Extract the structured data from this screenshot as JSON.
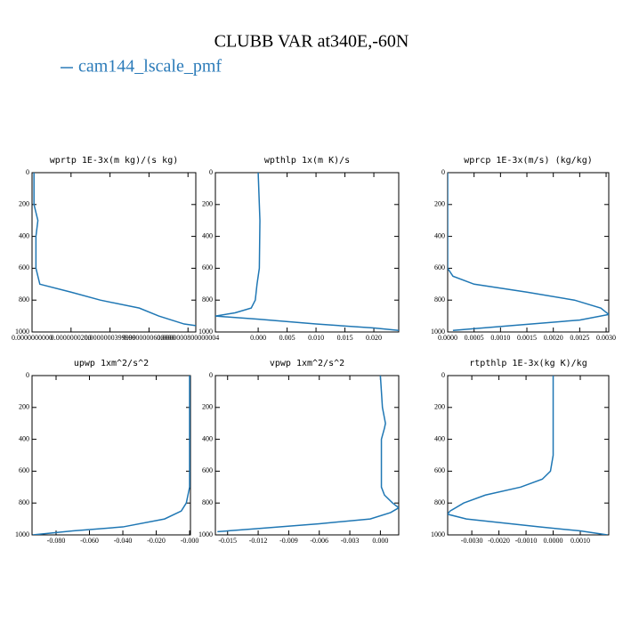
{
  "title": "CLUBB VAR at340E,-60N",
  "chart_data": [
    {
      "type": "line",
      "title": "wprtp  1E-3x(m kg)/(s kg)",
      "y": [
        0,
        100,
        200,
        300,
        400,
        500,
        600,
        700,
        750,
        800,
        850,
        900,
        950,
        960
      ],
      "series": [
        {
          "name": "cam144_lscale_pmf",
          "color": "#1f77b4",
          "values": [
            1e-09,
            1e-09,
            1e-09,
            3e-09,
            2e-09,
            2e-09,
            2e-09,
            4e-09,
            2e-08,
            3.5e-08,
            5.5e-08,
            6.5e-08,
            7.8e-08,
            8.4e-08
          ]
        }
      ],
      "xlim": [
        0,
        8.4e-08
      ],
      "xticks": [
        {
          "value": 0,
          "label": "0.0000000000"
        },
        {
          "value": 2e-08,
          "label": "0.0000000200"
        },
        {
          "value": 3.99999e-08,
          "label": "0.0000000399999"
        },
        {
          "value": 6e-08,
          "label": "0.0000000600000"
        },
        {
          "value": 8.00000004e-08,
          "label": "0.0000000800000004"
        }
      ],
      "ylim": [
        1000,
        0
      ],
      "yticks": [
        0,
        200,
        400,
        600,
        800,
        1000
      ]
    },
    {
      "type": "line",
      "title": "wpthlp  1x(m K)/s",
      "y": [
        0,
        300,
        600,
        700,
        800,
        850,
        880,
        900,
        920,
        950,
        975,
        990
      ],
      "series": [
        {
          "name": "cam144_lscale_pmf",
          "color": "#1f77b4",
          "values": [
            0,
            0.0003,
            0.0002,
            -0.0002,
            -0.0005,
            -0.0012,
            -0.004,
            -0.0074,
            0,
            0.01,
            0.02,
            0.0243
          ]
        }
      ],
      "xlim": [
        -0.0074,
        0.0243
      ],
      "xticks": [
        {
          "value": 0,
          "label": "0.000"
        },
        {
          "value": 0.005,
          "label": "0.005"
        },
        {
          "value": 0.01,
          "label": "0.010"
        },
        {
          "value": 0.015,
          "label": "0.015"
        },
        {
          "value": 0.02,
          "label": "0.020"
        }
      ],
      "ylim": [
        1000,
        0
      ],
      "yticks": [
        0,
        200,
        400,
        600,
        800,
        1000
      ]
    },
    {
      "type": "line",
      "title": "wprcp  1E-3x(m/s) (kg/kg)",
      "y": [
        0,
        300,
        600,
        650,
        700,
        750,
        800,
        850,
        890,
        925,
        960,
        990
      ],
      "series": [
        {
          "name": "cam144_lscale_pmf",
          "color": "#1f77b4",
          "values": [
            0,
            0,
            0,
            0.0001,
            0.0005,
            0.0015,
            0.0024,
            0.0029,
            0.00305,
            0.0025,
            0.0012,
            0.0001
          ]
        }
      ],
      "xlim": [
        0,
        0.00305
      ],
      "xticks": [
        {
          "value": 0,
          "label": "0.0000"
        },
        {
          "value": 0.0005,
          "label": "0.0005"
        },
        {
          "value": 0.001,
          "label": "0.0010"
        },
        {
          "value": 0.0015,
          "label": "0.0015"
        },
        {
          "value": 0.002,
          "label": "0.0020"
        },
        {
          "value": 0.0025,
          "label": "0.0025"
        },
        {
          "value": 0.003,
          "label": "0.0030"
        }
      ],
      "ylim": [
        1000,
        0
      ],
      "yticks": [
        0,
        200,
        400,
        600,
        800,
        1000
      ]
    },
    {
      "type": "line",
      "title": "upwp  1xm^2/s^2",
      "y": [
        0,
        300,
        600,
        700,
        750,
        800,
        850,
        900,
        950,
        975,
        1000
      ],
      "series": [
        {
          "name": "cam144_lscale_pmf",
          "color": "#1f77b4",
          "values": [
            0,
            0,
            0,
            0,
            -0.001,
            -0.002,
            -0.005,
            -0.015,
            -0.04,
            -0.07,
            -0.094
          ]
        }
      ],
      "xlim": [
        -0.0944,
        0.0005
      ],
      "xticks": [
        {
          "value": -0.08,
          "label": "-0.080"
        },
        {
          "value": -0.06,
          "label": "-0.060"
        },
        {
          "value": -0.04,
          "label": "-0.040"
        },
        {
          "value": -0.02,
          "label": "-0.020"
        },
        {
          "value": 0,
          "label": "-0.000"
        }
      ],
      "ylim": [
        1000,
        0
      ],
      "yticks": [
        0,
        200,
        400,
        600,
        800,
        1000
      ]
    },
    {
      "type": "line",
      "title": "vpwp  1xm^2/s^2",
      "y": [
        0,
        200,
        300,
        330,
        400,
        500,
        700,
        750,
        800,
        830,
        860,
        900,
        930,
        960,
        980
      ],
      "series": [
        {
          "name": "cam144_lscale_pmf",
          "color": "#1f77b4",
          "values": [
            0,
            0.0002,
            0.0005,
            0.0004,
            0.0001,
            0.0001,
            0.0001,
            0.0004,
            0.0012,
            0.0018,
            0.001,
            -0.001,
            -0.006,
            -0.012,
            -0.016
          ]
        }
      ],
      "xlim": [
        -0.0162,
        0.0018
      ],
      "xticks": [
        {
          "value": -0.015,
          "label": "-0.015"
        },
        {
          "value": -0.012,
          "label": "-0.012"
        },
        {
          "value": -0.009,
          "label": "-0.009"
        },
        {
          "value": -0.006,
          "label": "-0.006"
        },
        {
          "value": -0.003,
          "label": "-0.003"
        },
        {
          "value": 0,
          "label": "0.000"
        }
      ],
      "ylim": [
        1000,
        0
      ],
      "yticks": [
        0,
        200,
        400,
        600,
        800,
        1000
      ]
    },
    {
      "type": "line",
      "title": "rtpthlp  1E-3x(kg K)/kg",
      "y": [
        0,
        300,
        500,
        600,
        650,
        700,
        750,
        800,
        850,
        870,
        900,
        950,
        975,
        1000
      ],
      "series": [
        {
          "name": "cam144_lscale_pmf",
          "color": "#1f77b4",
          "values": [
            0,
            0,
            0,
            -0.0001,
            -0.0004,
            -0.0012,
            -0.0025,
            -0.0033,
            -0.0038,
            -0.0039,
            -0.0032,
            -0.0005,
            0.001,
            0.002
          ]
        }
      ],
      "xlim": [
        -0.00389,
        0.00205
      ],
      "xticks": [
        {
          "value": -0.003,
          "label": "-0.0030"
        },
        {
          "value": -0.002,
          "label": "-0.0020"
        },
        {
          "value": -0.001,
          "label": "-0.0010"
        },
        {
          "value": 0,
          "label": "0.0000"
        },
        {
          "value": 0.001,
          "label": "0.0010"
        }
      ],
      "ylim": [
        1000,
        0
      ],
      "yticks": [
        0,
        200,
        400,
        600,
        800,
        1000
      ]
    }
  ]
}
